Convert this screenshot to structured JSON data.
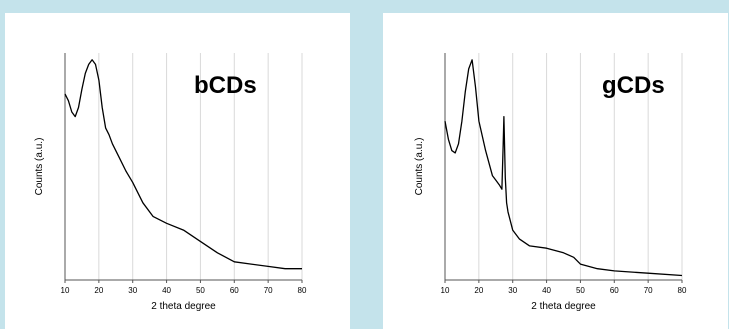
{
  "chart_data": [
    {
      "type": "line",
      "annotation": "bCDs",
      "xlabel": "2 theta degree",
      "ylabel": "Counts (a.u.)",
      "xlim": [
        10,
        80
      ],
      "ylim": [
        0,
        100
      ],
      "y_ticks_shown": false,
      "grid": "vertical",
      "x_ticks": [
        "10",
        "20",
        "30",
        "40",
        "50",
        "60",
        "70",
        "80"
      ],
      "series": [
        {
          "x": [
            10,
            11,
            12,
            13,
            14,
            15,
            16,
            17,
            18,
            19,
            20,
            21,
            22,
            23,
            24,
            26,
            28,
            30,
            33,
            36,
            40,
            45,
            50,
            55,
            60,
            65,
            70,
            75,
            80
          ],
          "y": [
            82,
            79,
            74,
            72,
            76,
            84,
            91,
            95,
            97,
            95,
            88,
            76,
            67,
            64,
            60,
            54,
            48,
            43,
            34,
            28,
            25,
            22,
            17,
            12,
            8,
            7,
            6,
            5,
            5
          ]
        }
      ]
    },
    {
      "type": "line",
      "annotation": "gCDs",
      "xlabel": "2 theta degree",
      "ylabel": "Counts (a.u.)",
      "xlim": [
        10,
        80
      ],
      "ylim": [
        0,
        100
      ],
      "y_ticks_shown": false,
      "grid": "vertical",
      "x_ticks": [
        "10",
        "20",
        "30",
        "40",
        "50",
        "60",
        "70",
        "80"
      ],
      "series": [
        {
          "x": [
            10,
            11,
            12,
            13,
            14,
            15,
            16,
            17,
            18,
            19,
            20,
            22,
            24,
            25,
            26,
            26.8,
            27.2,
            27.4,
            27.8,
            28.2,
            28.6,
            30,
            32,
            35,
            40,
            45,
            48,
            50,
            55,
            60,
            70,
            80
          ],
          "y": [
            70,
            62,
            57,
            56,
            60,
            70,
            83,
            93,
            97,
            85,
            70,
            57,
            46,
            44,
            42,
            40,
            60,
            72,
            45,
            34,
            30,
            22,
            18,
            15,
            14,
            12,
            10,
            7,
            5,
            4,
            3,
            2
          ]
        }
      ]
    }
  ]
}
